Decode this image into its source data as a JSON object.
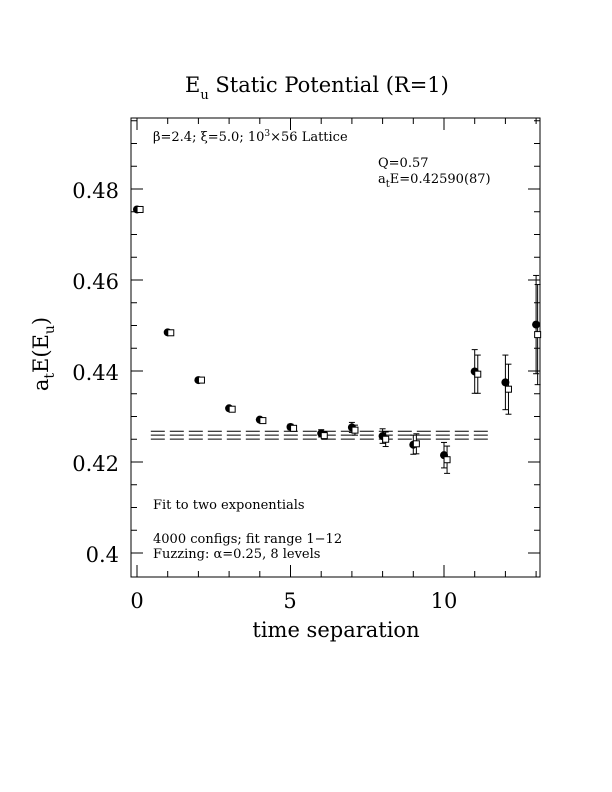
{
  "chart_data": {
    "type": "scatter",
    "title": "E",
    "title_sub": "u",
    "title_rest": " Static Potential (R=1)",
    "xlabel": "time separation",
    "ylabel_main": "a",
    "ylabel_sub_t": "t",
    "ylabel_mid": "E(E",
    "ylabel_sub_u": "u",
    "ylabel_end": ")",
    "xlim": [
      -0.2,
      13
    ],
    "ylim": [
      0.395,
      0.496
    ],
    "x_ticks": [
      0,
      5,
      10
    ],
    "x_tick_labels": [
      "0",
      "5",
      "10"
    ],
    "y_ticks": [
      0.4,
      0.42,
      0.44,
      0.46,
      0.48
    ],
    "y_tick_labels": [
      "0.4",
      "0.42",
      "0.44",
      "0.46",
      "0.48"
    ],
    "grid": false,
    "annotations": {
      "lattice_prefix": "β=2.4; ξ=5.0; 10",
      "lattice_sup": "3",
      "lattice_suffix": "×56 Lattice",
      "q_value": "Q=0.57",
      "fit_a": "a",
      "fit_t": "t",
      "fit_rest": "E=0.42590(87)",
      "fit_method": "Fit to two exponentials",
      "configs": "4000 configs; fit range 1−12",
      "fuzzing": "Fuzzing: α=0.25, 8 levels"
    },
    "series": [
      {
        "marker": "filled-circle",
        "x": [
          0,
          1,
          2,
          3,
          4,
          5,
          6,
          7,
          8,
          9,
          10,
          11,
          12,
          13
        ],
        "y": [
          0.4755,
          0.4485,
          0.438,
          0.4318,
          0.4293,
          0.4277,
          0.4263,
          0.4276,
          0.4257,
          0.4238,
          0.4215,
          0.4399,
          0.4375,
          0.4502
        ],
        "err": [
          0.0003,
          0.0003,
          0.0003,
          0.0004,
          0.0004,
          0.0006,
          0.0008,
          0.0011,
          0.0016,
          0.0021,
          0.0028,
          0.0048,
          0.006,
          0.0108
        ]
      },
      {
        "marker": "open-square",
        "x": [
          0.1,
          1.1,
          2.1,
          3.1,
          4.1,
          5.1,
          6.1,
          7.1,
          8.1,
          9.1,
          10.1,
          11.1,
          12.1,
          13.05
        ],
        "y": [
          0.4755,
          0.4484,
          0.438,
          0.4316,
          0.4291,
          0.4274,
          0.4258,
          0.427,
          0.425,
          0.424,
          0.4205,
          0.4393,
          0.436,
          0.448
        ],
        "err": [
          0.0003,
          0.0003,
          0.0003,
          0.0004,
          0.0004,
          0.0006,
          0.0008,
          0.0011,
          0.0016,
          0.0022,
          0.003,
          0.0042,
          0.0055,
          0.011
        ]
      }
    ],
    "fit_band": {
      "x_range": [
        1,
        12
      ],
      "center": 0.4259,
      "error": 0.00087
    }
  }
}
